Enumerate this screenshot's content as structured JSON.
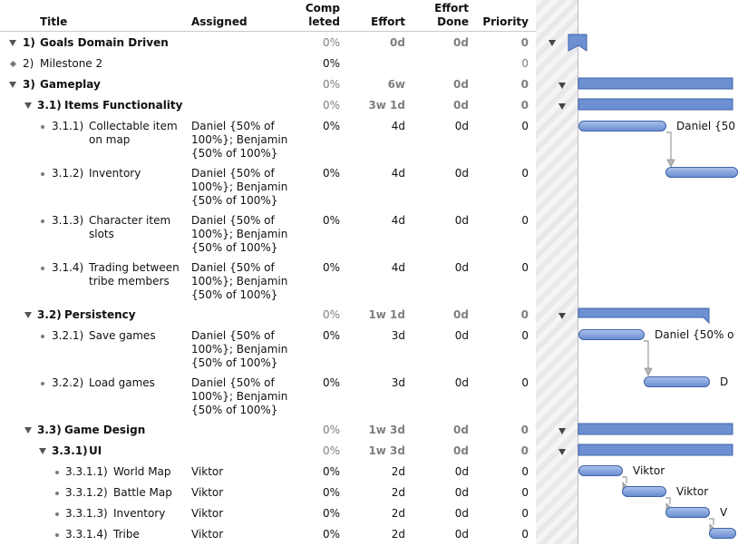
{
  "columns": {
    "title": "Title",
    "assigned": "Assigned",
    "completed_line1": "Comp",
    "completed_line2": "leted",
    "effort": "Effort",
    "effort_done_line1": "Effort",
    "effort_done_line2": "Done",
    "priority": "Priority"
  },
  "rows": [
    {
      "num": "1)",
      "title": "Goals Domain Driven",
      "completed": "0%",
      "effort": "0d",
      "done": "0d",
      "priority": "0"
    },
    {
      "num": "2)",
      "title": "Milestone 2",
      "completed": "0%",
      "priority": "0"
    },
    {
      "num": "3)",
      "title": "Gameplay",
      "completed": "0%",
      "effort": "6w",
      "done": "0d",
      "priority": "0"
    },
    {
      "num": "3.1)",
      "title": "Items Functionality",
      "completed": "0%",
      "effort": "3w 1d",
      "done": "0d",
      "priority": "0"
    },
    {
      "num": "3.1.1)",
      "title_l1": "Collectable item",
      "title_l2": "on map",
      "as_l1": "Daniel {50% of",
      "as_l2": "100%}; Benjamin",
      "as_l3": "{50% of 100%}",
      "completed": "0%",
      "effort": "4d",
      "done": "0d",
      "priority": "0"
    },
    {
      "num": "3.1.2)",
      "title": "Inventory",
      "as_l1": "Daniel {50% of",
      "as_l2": "100%}; Benjamin",
      "as_l3": "{50% of 100%}",
      "completed": "0%",
      "effort": "4d",
      "done": "0d",
      "priority": "0"
    },
    {
      "num": "3.1.3)",
      "title_l1": "Character item",
      "title_l2": "slots",
      "as_l1": "Daniel {50% of",
      "as_l2": "100%}; Benjamin",
      "as_l3": "{50% of 100%}",
      "completed": "0%",
      "effort": "4d",
      "done": "0d",
      "priority": "0"
    },
    {
      "num": "3.1.4)",
      "title_l1": "Trading between",
      "title_l2": "tribe members",
      "as_l1": "Daniel {50% of",
      "as_l2": "100%}; Benjamin",
      "as_l3": "{50% of 100%}",
      "completed": "0%",
      "effort": "4d",
      "done": "0d",
      "priority": "0"
    },
    {
      "num": "3.2)",
      "title": "Persistency",
      "completed": "0%",
      "effort": "1w 1d",
      "done": "0d",
      "priority": "0"
    },
    {
      "num": "3.2.1)",
      "title": "Save games",
      "as_l1": "Daniel {50% of",
      "as_l2": "100%}; Benjamin",
      "as_l3": "{50% of 100%}",
      "completed": "0%",
      "effort": "3d",
      "done": "0d",
      "priority": "0"
    },
    {
      "num": "3.2.2)",
      "title": "Load games",
      "as_l1": "Daniel {50% of",
      "as_l2": "100%}; Benjamin",
      "as_l3": "{50% of 100%}",
      "completed": "0%",
      "effort": "3d",
      "done": "0d",
      "priority": "0"
    },
    {
      "num": "3.3)",
      "title": "Game Design",
      "completed": "0%",
      "effort": "1w 3d",
      "done": "0d",
      "priority": "0"
    },
    {
      "num": "3.3.1)",
      "title": "UI",
      "completed": "0%",
      "effort": "1w 3d",
      "done": "0d",
      "priority": "0"
    },
    {
      "num": "3.3.1.1)",
      "title": "World Map",
      "assigned": "Viktor",
      "completed": "0%",
      "effort": "2d",
      "done": "0d",
      "priority": "0"
    },
    {
      "num": "3.3.1.2)",
      "title": "Battle Map",
      "assigned": "Viktor",
      "completed": "0%",
      "effort": "2d",
      "done": "0d",
      "priority": "0"
    },
    {
      "num": "3.3.1.3)",
      "title": "Inventory",
      "assigned": "Viktor",
      "completed": "0%",
      "effort": "2d",
      "done": "0d",
      "priority": "0"
    },
    {
      "num": "3.3.1.4)",
      "title": "Tribe",
      "assigned": "Viktor",
      "completed": "0%",
      "effort": "2d",
      "done": "0d",
      "priority": "0"
    }
  ],
  "gantt_labels": {
    "r4": "Daniel {50",
    "r9": "Daniel {50% o",
    "r10": "D",
    "r13": "Viktor",
    "r14": "Viktor",
    "r15": "V"
  }
}
